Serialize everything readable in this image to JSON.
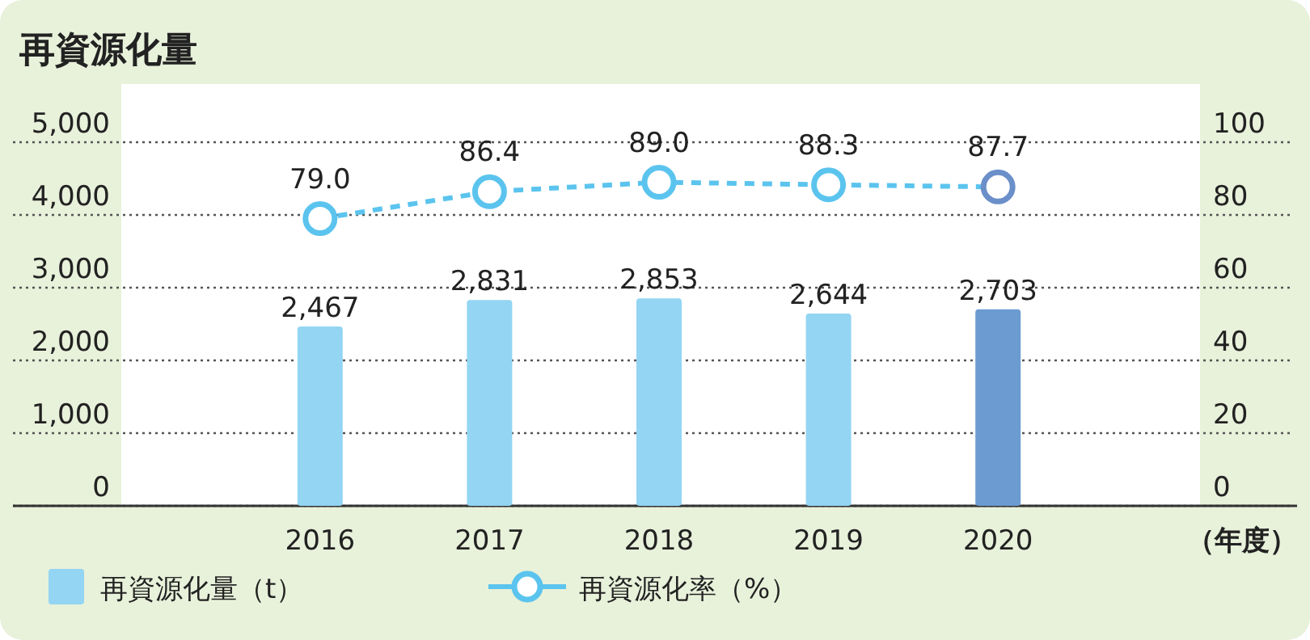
{
  "chart_data": {
    "type": "bar",
    "title": "再資源化量",
    "xlabel": "（年度）",
    "categories": [
      "2016",
      "2017",
      "2018",
      "2019",
      "2020"
    ],
    "series": [
      {
        "name": "再資源化量（t）",
        "color": "#93d5f3",
        "colors": [
          "#93d5f3",
          "#93d5f3",
          "#93d5f3",
          "#93d5f3",
          "#6b9bd1"
        ],
        "values": [
          2467,
          2831,
          2853,
          2644,
          2703
        ],
        "value_labels": [
          "2,467",
          "2,831",
          "2,853",
          "2,644",
          "2,703"
        ]
      },
      {
        "name": "再資源化率（%）",
        "type": "line",
        "axis": "y2",
        "color": "#5bc4ee",
        "colors": [
          "#5bc4ee",
          "#5bc4ee",
          "#5bc4ee",
          "#5bc4ee",
          "#6b8fc9"
        ],
        "marker": "circle",
        "line_style": "dashed",
        "values": [
          79.0,
          86.4,
          89.0,
          88.3,
          87.7
        ],
        "value_labels": [
          "79.0",
          "86.4",
          "89.0",
          "88.3",
          "87.7"
        ]
      }
    ],
    "ylim": [
      0,
      5000
    ],
    "yticks": [
      0,
      {
        "value": 1000,
        "label": "1,000"
      },
      {
        "value": 2000,
        "label": "2,000"
      },
      {
        "value": 3000,
        "label": "3,000"
      },
      {
        "value": 4000,
        "label": "4,000"
      },
      {
        "value": 5000,
        "label": "5,000"
      }
    ],
    "y2lim": [
      0,
      100
    ],
    "y2ticks": [
      0,
      20,
      40,
      60,
      80,
      100
    ],
    "grid": "y",
    "legend": "bottom"
  }
}
